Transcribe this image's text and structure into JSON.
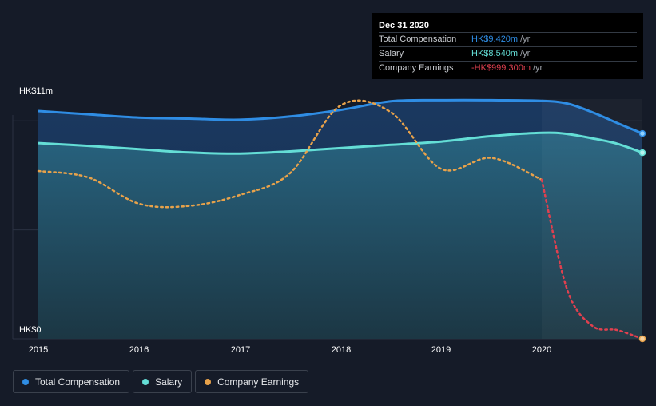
{
  "chart_data": {
    "type": "line",
    "x": [
      2015.0,
      2015.5,
      2016.0,
      2016.5,
      2017.0,
      2017.5,
      2018.0,
      2018.5,
      2019.0,
      2019.5,
      2020.0,
      2020.25,
      2020.5,
      2020.75,
      2021.0
    ],
    "series": [
      {
        "name": "Total Compensation",
        "color": "#2f8de4",
        "values": [
          10.45,
          10.3,
          10.15,
          10.1,
          10.05,
          10.2,
          10.5,
          10.9,
          10.95,
          10.95,
          10.92,
          10.8,
          10.4,
          9.9,
          9.42
        ]
      },
      {
        "name": "Salary",
        "color": "#64ded6",
        "values": [
          8.98,
          8.85,
          8.7,
          8.55,
          8.5,
          8.6,
          8.75,
          8.9,
          9.05,
          9.3,
          9.45,
          9.4,
          9.2,
          8.95,
          8.54
        ]
      },
      {
        "name": "Company Earnings",
        "color": "#e8a24a",
        "negative_color": "#e0404f",
        "values": [
          7.7,
          7.4,
          6.2,
          6.1,
          6.6,
          7.6,
          10.7,
          10.4,
          7.8,
          8.3,
          7.3,
          2.3,
          0.6,
          0.4,
          0.0
        ]
      }
    ],
    "ylabel_top": "HK$11m",
    "ylabel_bottom": "HK$0",
    "x_ticks": [
      "2015",
      "2016",
      "2017",
      "2018",
      "2019",
      "2020"
    ],
    "ylim": [
      0,
      11
    ],
    "grid": true,
    "legend_position": "bottom-left"
  },
  "tooltip": {
    "date": "Dec 31 2020",
    "rows": [
      {
        "name": "Total Compensation",
        "value": "HK$9.420m",
        "unit": "/yr",
        "color": "#2f8de4"
      },
      {
        "name": "Salary",
        "value": "HK$8.540m",
        "unit": "/yr",
        "color": "#64ded6"
      },
      {
        "name": "Company Earnings",
        "value": "-HK$999.300m",
        "unit": "/yr",
        "color": "#e0404f"
      }
    ]
  },
  "legend": {
    "items": [
      {
        "label": "Total Compensation",
        "color": "#2f8de4"
      },
      {
        "label": "Salary",
        "color": "#64ded6"
      },
      {
        "label": "Company Earnings",
        "color": "#e8a24a"
      }
    ]
  }
}
